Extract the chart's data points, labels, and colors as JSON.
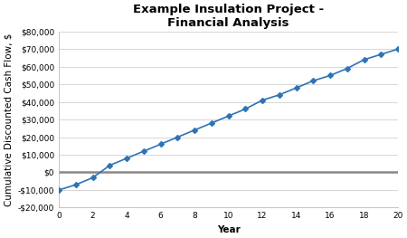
{
  "title": "Example Insulation Project -\nFinancial Analysis",
  "xlabel": "Year",
  "ylabel": "Cumulative Discounted Cash Flow, $",
  "x_values": [
    0,
    1,
    2,
    3,
    4,
    5,
    6,
    7,
    8,
    9,
    10,
    11,
    12,
    13,
    14,
    15,
    16,
    17,
    18,
    19,
    20
  ],
  "y_values": [
    -10000,
    -7000,
    -3000,
    4000,
    8000,
    12000,
    16000,
    20000,
    24000,
    28000,
    32000,
    36000,
    41000,
    44000,
    48000,
    52000,
    55000,
    59000,
    64000,
    67000,
    70000
  ],
  "line_color": "#2E74B5",
  "marker": "D",
  "marker_size": 3,
  "line_width": 1.2,
  "xlim": [
    0,
    20
  ],
  "ylim": [
    -20000,
    80000
  ],
  "yticks": [
    -20000,
    -10000,
    0,
    10000,
    20000,
    30000,
    40000,
    50000,
    60000,
    70000,
    80000
  ],
  "xticks": [
    0,
    2,
    4,
    6,
    8,
    10,
    12,
    14,
    16,
    18,
    20
  ],
  "grid_color": "#D0D0D0",
  "zero_line_color": "#888888",
  "background_color": "#FFFFFF",
  "title_fontsize": 9.5,
  "axis_label_fontsize": 7.5,
  "tick_fontsize": 6.5
}
